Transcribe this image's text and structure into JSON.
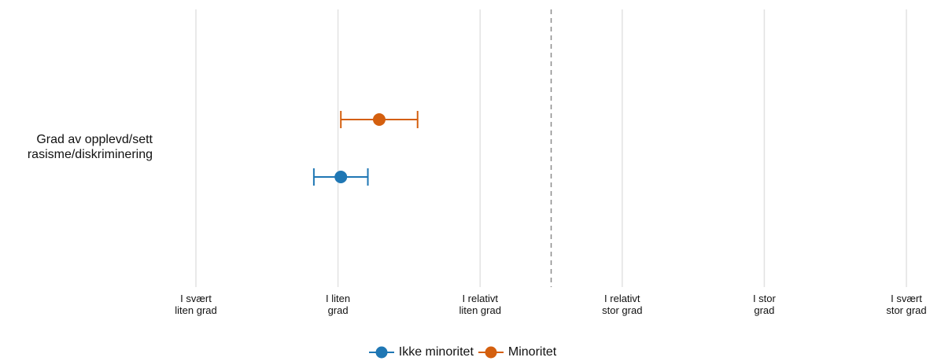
{
  "chart_data": {
    "type": "dot-errorbar",
    "ylabel": [
      "Grad av opplevd/sett",
      "rasisme/diskriminering"
    ],
    "x_ticks": [
      {
        "value": 1,
        "lines": [
          "I svært",
          "liten grad"
        ]
      },
      {
        "value": 2,
        "lines": [
          "I liten",
          "grad"
        ]
      },
      {
        "value": 3,
        "lines": [
          "I relativt",
          "liten grad"
        ]
      },
      {
        "value": 4,
        "lines": [
          "I relativt",
          "stor grad"
        ]
      },
      {
        "value": 5,
        "lines": [
          "I stor",
          "grad"
        ]
      },
      {
        "value": 6,
        "lines": [
          "I svært",
          "stor grad"
        ]
      }
    ],
    "xlim": [
      1,
      6
    ],
    "reference_line": 3.5,
    "series": [
      {
        "name": "Ikke minoritet",
        "color": "#1f77b4",
        "estimate": 2.02,
        "lower": 1.83,
        "upper": 2.21
      },
      {
        "name": "Minoritet",
        "color": "#d45f0e",
        "estimate": 2.29,
        "lower": 2.02,
        "upper": 2.56
      }
    ],
    "grid": true,
    "legend_position": "bottom"
  }
}
